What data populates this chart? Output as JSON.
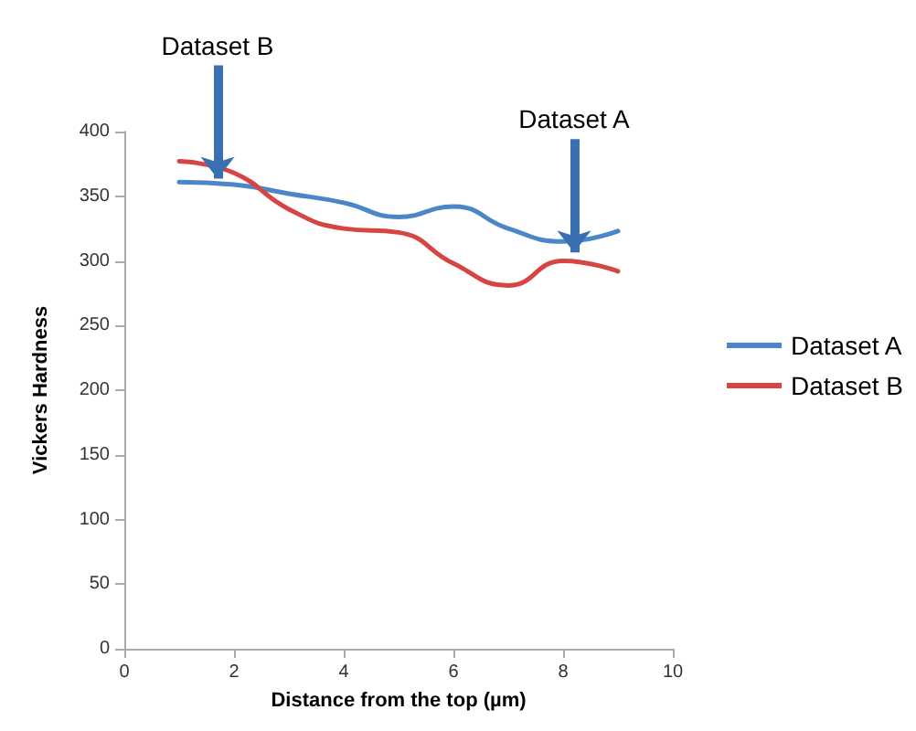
{
  "chart_data": {
    "type": "line",
    "xlabel": "Distance from the top (µm)",
    "ylabel": "Vickers Hardness",
    "x": [
      1,
      2,
      3,
      4,
      5,
      6,
      7,
      8,
      9
    ],
    "series": [
      {
        "name": "Dataset A",
        "color": "#4a86c8",
        "values": [
          361,
          359,
          352,
          345,
          334,
          342,
          325,
          315,
          323
        ]
      },
      {
        "name": "Dataset B",
        "color": "#d64541",
        "values": [
          377,
          368,
          340,
          325,
          322,
          298,
          281,
          300,
          292
        ]
      }
    ],
    "xlim": [
      0,
      10
    ],
    "xticks": [
      0,
      2,
      4,
      6,
      8,
      10
    ],
    "ylim": [
      0,
      400
    ],
    "yticks": [
      0,
      50,
      100,
      150,
      200,
      250,
      300,
      350,
      400
    ],
    "grid": false,
    "legend": "right",
    "marker": "none",
    "line_style": "solid",
    "annotations": [
      {
        "text": "Dataset B",
        "x": 1.7,
        "y": 372
      },
      {
        "text": "Dataset A",
        "x": 8.2,
        "y": 315
      }
    ]
  }
}
